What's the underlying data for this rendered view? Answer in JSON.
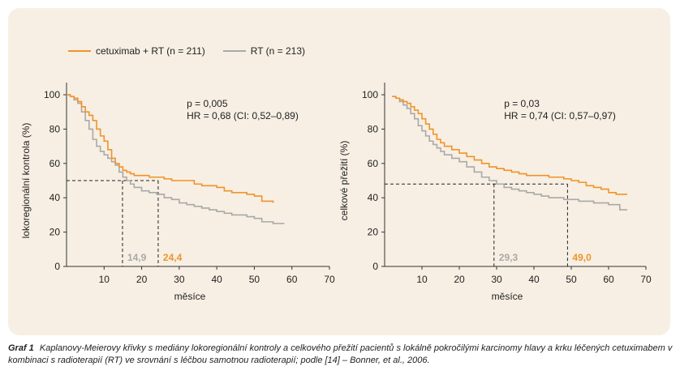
{
  "colors": {
    "treatment": "#f0932a",
    "control": "#a9a9a9",
    "median_label_treatment": "#f0932a",
    "median_label_control": "#a9a9a9",
    "panel_bg": "#f7efe3"
  },
  "legend": [
    {
      "name": "cetuximab + RT (n = 211)",
      "color": "#f0932a"
    },
    {
      "name": "RT (n = 213)",
      "color": "#a9a9a9"
    }
  ],
  "caption": {
    "label": "Graf 1",
    "text": "Kaplanovy-Meierovy křivky s mediány lokoregionální kontroly a celkového přežití pacientů s lokálně pokročilými karcinomy hlavy a krku léčených cetuximabem v kombinaci s radioterapií (RT) ve srovnání s léčbou samotnou radioterapií; podle [14] – Bonner, et al., 2006."
  },
  "chart_data": [
    {
      "type": "line",
      "xlabel": "měsíce",
      "ylabel": "lokoregionální kontrola (%)",
      "xlim": [
        0,
        70
      ],
      "ylim": [
        0,
        100
      ],
      "xticks": [
        10,
        20,
        30,
        40,
        50,
        60,
        70
      ],
      "yticks": [
        0,
        20,
        40,
        60,
        80,
        100
      ],
      "annotation": [
        "p = 0,005",
        "HR = 0,68 (CI: 0,52–0,89)"
      ],
      "median_line_y": 50,
      "medians": [
        {
          "series": "RT",
          "value": 14.9,
          "label": "14,9"
        },
        {
          "series": "cetuximab + RT",
          "value": 24.4,
          "label": "24,4"
        }
      ],
      "series": [
        {
          "name": "cetuximab + RT",
          "x": [
            0,
            1,
            2,
            3,
            4,
            5,
            6,
            7,
            8,
            9,
            10,
            11,
            12,
            13,
            14,
            15,
            16,
            17,
            18,
            20,
            22,
            24,
            26,
            28,
            30,
            32,
            34,
            36,
            38,
            40,
            42,
            44,
            46,
            48,
            50,
            52,
            55
          ],
          "y": [
            100,
            99,
            98,
            96,
            93,
            90,
            88,
            85,
            80,
            76,
            73,
            68,
            63,
            60,
            58,
            56,
            55,
            54,
            53,
            53,
            52,
            52,
            51,
            50,
            50,
            50,
            48,
            47,
            47,
            46,
            44,
            43,
            43,
            42,
            41,
            38,
            37
          ]
        },
        {
          "name": "RT",
          "x": [
            0,
            1,
            2,
            3,
            4,
            5,
            6,
            7,
            8,
            9,
            10,
            11,
            12,
            13,
            14,
            15,
            16,
            17,
            18,
            20,
            22,
            24,
            26,
            28,
            30,
            32,
            34,
            36,
            38,
            40,
            42,
            44,
            46,
            48,
            50,
            52,
            55,
            58
          ],
          "y": [
            100,
            99,
            97,
            95,
            90,
            85,
            80,
            74,
            70,
            67,
            65,
            63,
            61,
            59,
            55,
            52,
            50,
            48,
            46,
            44,
            43,
            42,
            40,
            39,
            37,
            36,
            35,
            34,
            33,
            32,
            31,
            30,
            30,
            29,
            28,
            26,
            25,
            25
          ]
        }
      ]
    },
    {
      "type": "line",
      "xlabel": "měsíce",
      "ylabel": "celkové přežití (%)",
      "xlim": [
        0,
        70
      ],
      "ylim": [
        0,
        100
      ],
      "xticks": [
        10,
        20,
        30,
        40,
        50,
        60,
        70
      ],
      "yticks": [
        0,
        20,
        40,
        60,
        80,
        100
      ],
      "annotation": [
        "p = 0,03",
        "HR = 0,74 (CI: 0,57–0,97)"
      ],
      "median_line_y": 48,
      "medians": [
        {
          "series": "RT",
          "value": 29.3,
          "label": "29,3"
        },
        {
          "series": "cetuximab + RT",
          "value": 49.0,
          "label": "49,0"
        }
      ],
      "series": [
        {
          "name": "cetuximab + RT",
          "x": [
            2,
            3,
            4,
            5,
            6,
            7,
            8,
            9,
            10,
            11,
            12,
            13,
            14,
            15,
            16,
            18,
            20,
            22,
            24,
            26,
            28,
            30,
            32,
            34,
            36,
            38,
            40,
            42,
            44,
            46,
            48,
            50,
            52,
            54,
            56,
            58,
            60,
            62,
            65
          ],
          "y": [
            99,
            98,
            97,
            96,
            95,
            93,
            91,
            89,
            86,
            83,
            80,
            77,
            74,
            72,
            70,
            68,
            66,
            64,
            62,
            60,
            58,
            57,
            56,
            55,
            54,
            53,
            53,
            53,
            52,
            52,
            51,
            50,
            49,
            47,
            46,
            45,
            43,
            42,
            42
          ]
        },
        {
          "name": "RT",
          "x": [
            2,
            3,
            4,
            5,
            6,
            7,
            8,
            9,
            10,
            11,
            12,
            13,
            14,
            15,
            16,
            18,
            20,
            22,
            24,
            26,
            28,
            30,
            32,
            34,
            36,
            38,
            40,
            42,
            44,
            46,
            48,
            50,
            52,
            54,
            56,
            58,
            60,
            62,
            63,
            65
          ],
          "y": [
            99,
            98,
            96,
            94,
            92,
            89,
            86,
            82,
            79,
            76,
            73,
            71,
            69,
            67,
            65,
            63,
            61,
            58,
            55,
            52,
            50,
            48,
            46,
            45,
            44,
            43,
            42,
            41,
            40,
            40,
            39,
            39,
            38,
            38,
            37,
            37,
            36,
            36,
            33,
            33
          ]
        }
      ]
    }
  ]
}
